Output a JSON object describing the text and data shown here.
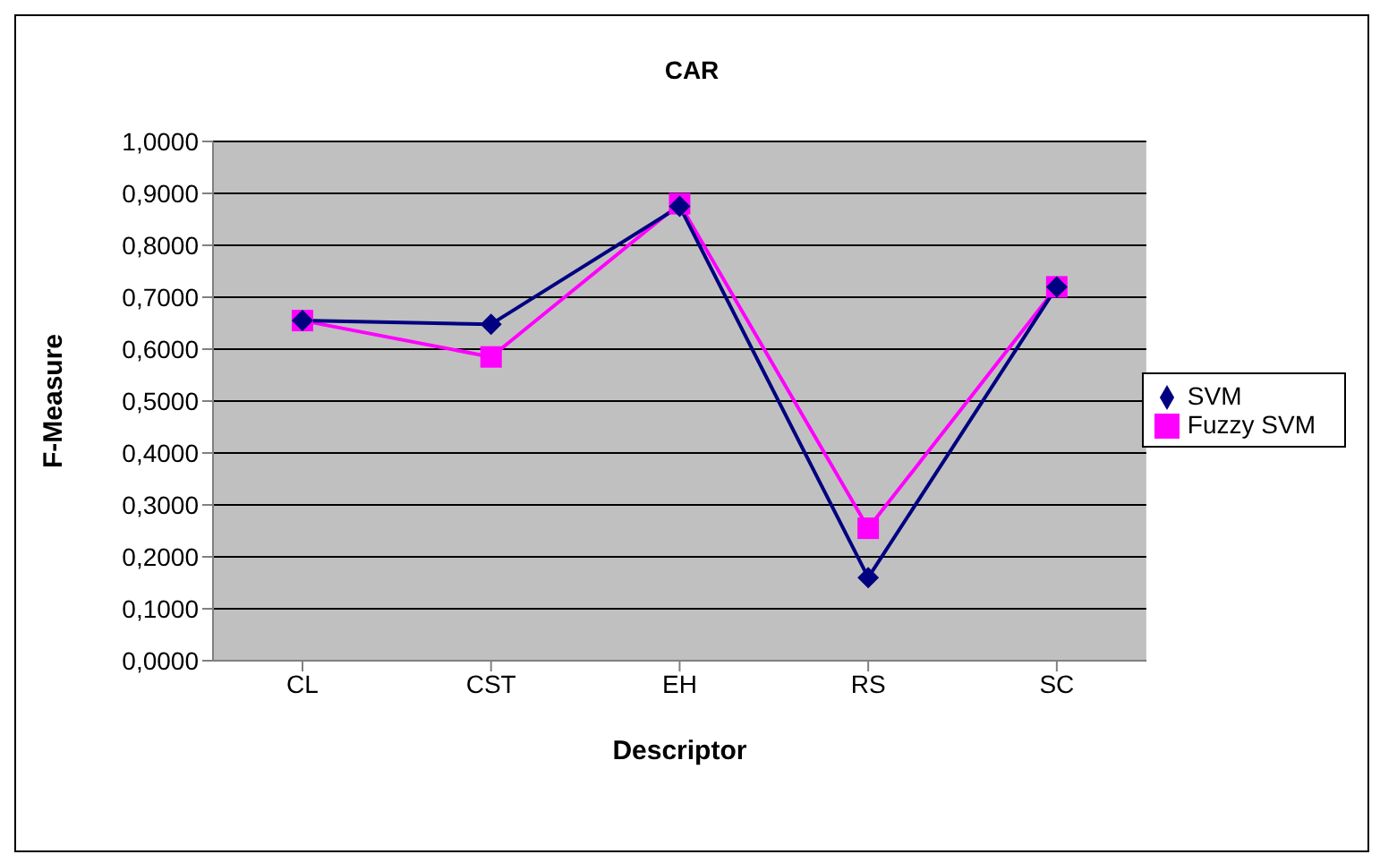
{
  "chart_data": {
    "type": "line",
    "title": "CAR",
    "xlabel": "Descriptor",
    "ylabel": "F-Measure",
    "categories": [
      "CL",
      "CST",
      "EH",
      "RS",
      "SC"
    ],
    "series": [
      {
        "name": "SVM",
        "color": "#000080",
        "marker": "diamond",
        "values": [
          0.655,
          0.648,
          0.875,
          0.16,
          0.72
        ]
      },
      {
        "name": "Fuzzy SVM",
        "color": "#ff00ff",
        "marker": "square",
        "values": [
          0.655,
          0.585,
          0.88,
          0.255,
          0.72
        ]
      }
    ],
    "ylim": [
      0,
      1
    ],
    "yticks": [
      {
        "value": 0,
        "label": "0,0000"
      },
      {
        "value": 0.1,
        "label": "0,1000"
      },
      {
        "value": 0.2,
        "label": "0,2000"
      },
      {
        "value": 0.3,
        "label": "0,3000"
      },
      {
        "value": 0.4,
        "label": "0,4000"
      },
      {
        "value": 0.5,
        "label": "0,5000"
      },
      {
        "value": 0.6,
        "label": "0,6000"
      },
      {
        "value": 0.7,
        "label": "0,7000"
      },
      {
        "value": 0.8,
        "label": "0,8000"
      },
      {
        "value": 0.9,
        "label": "0,9000"
      },
      {
        "value": 1,
        "label": "1,0000"
      }
    ],
    "grid": "y",
    "legend": "right"
  }
}
